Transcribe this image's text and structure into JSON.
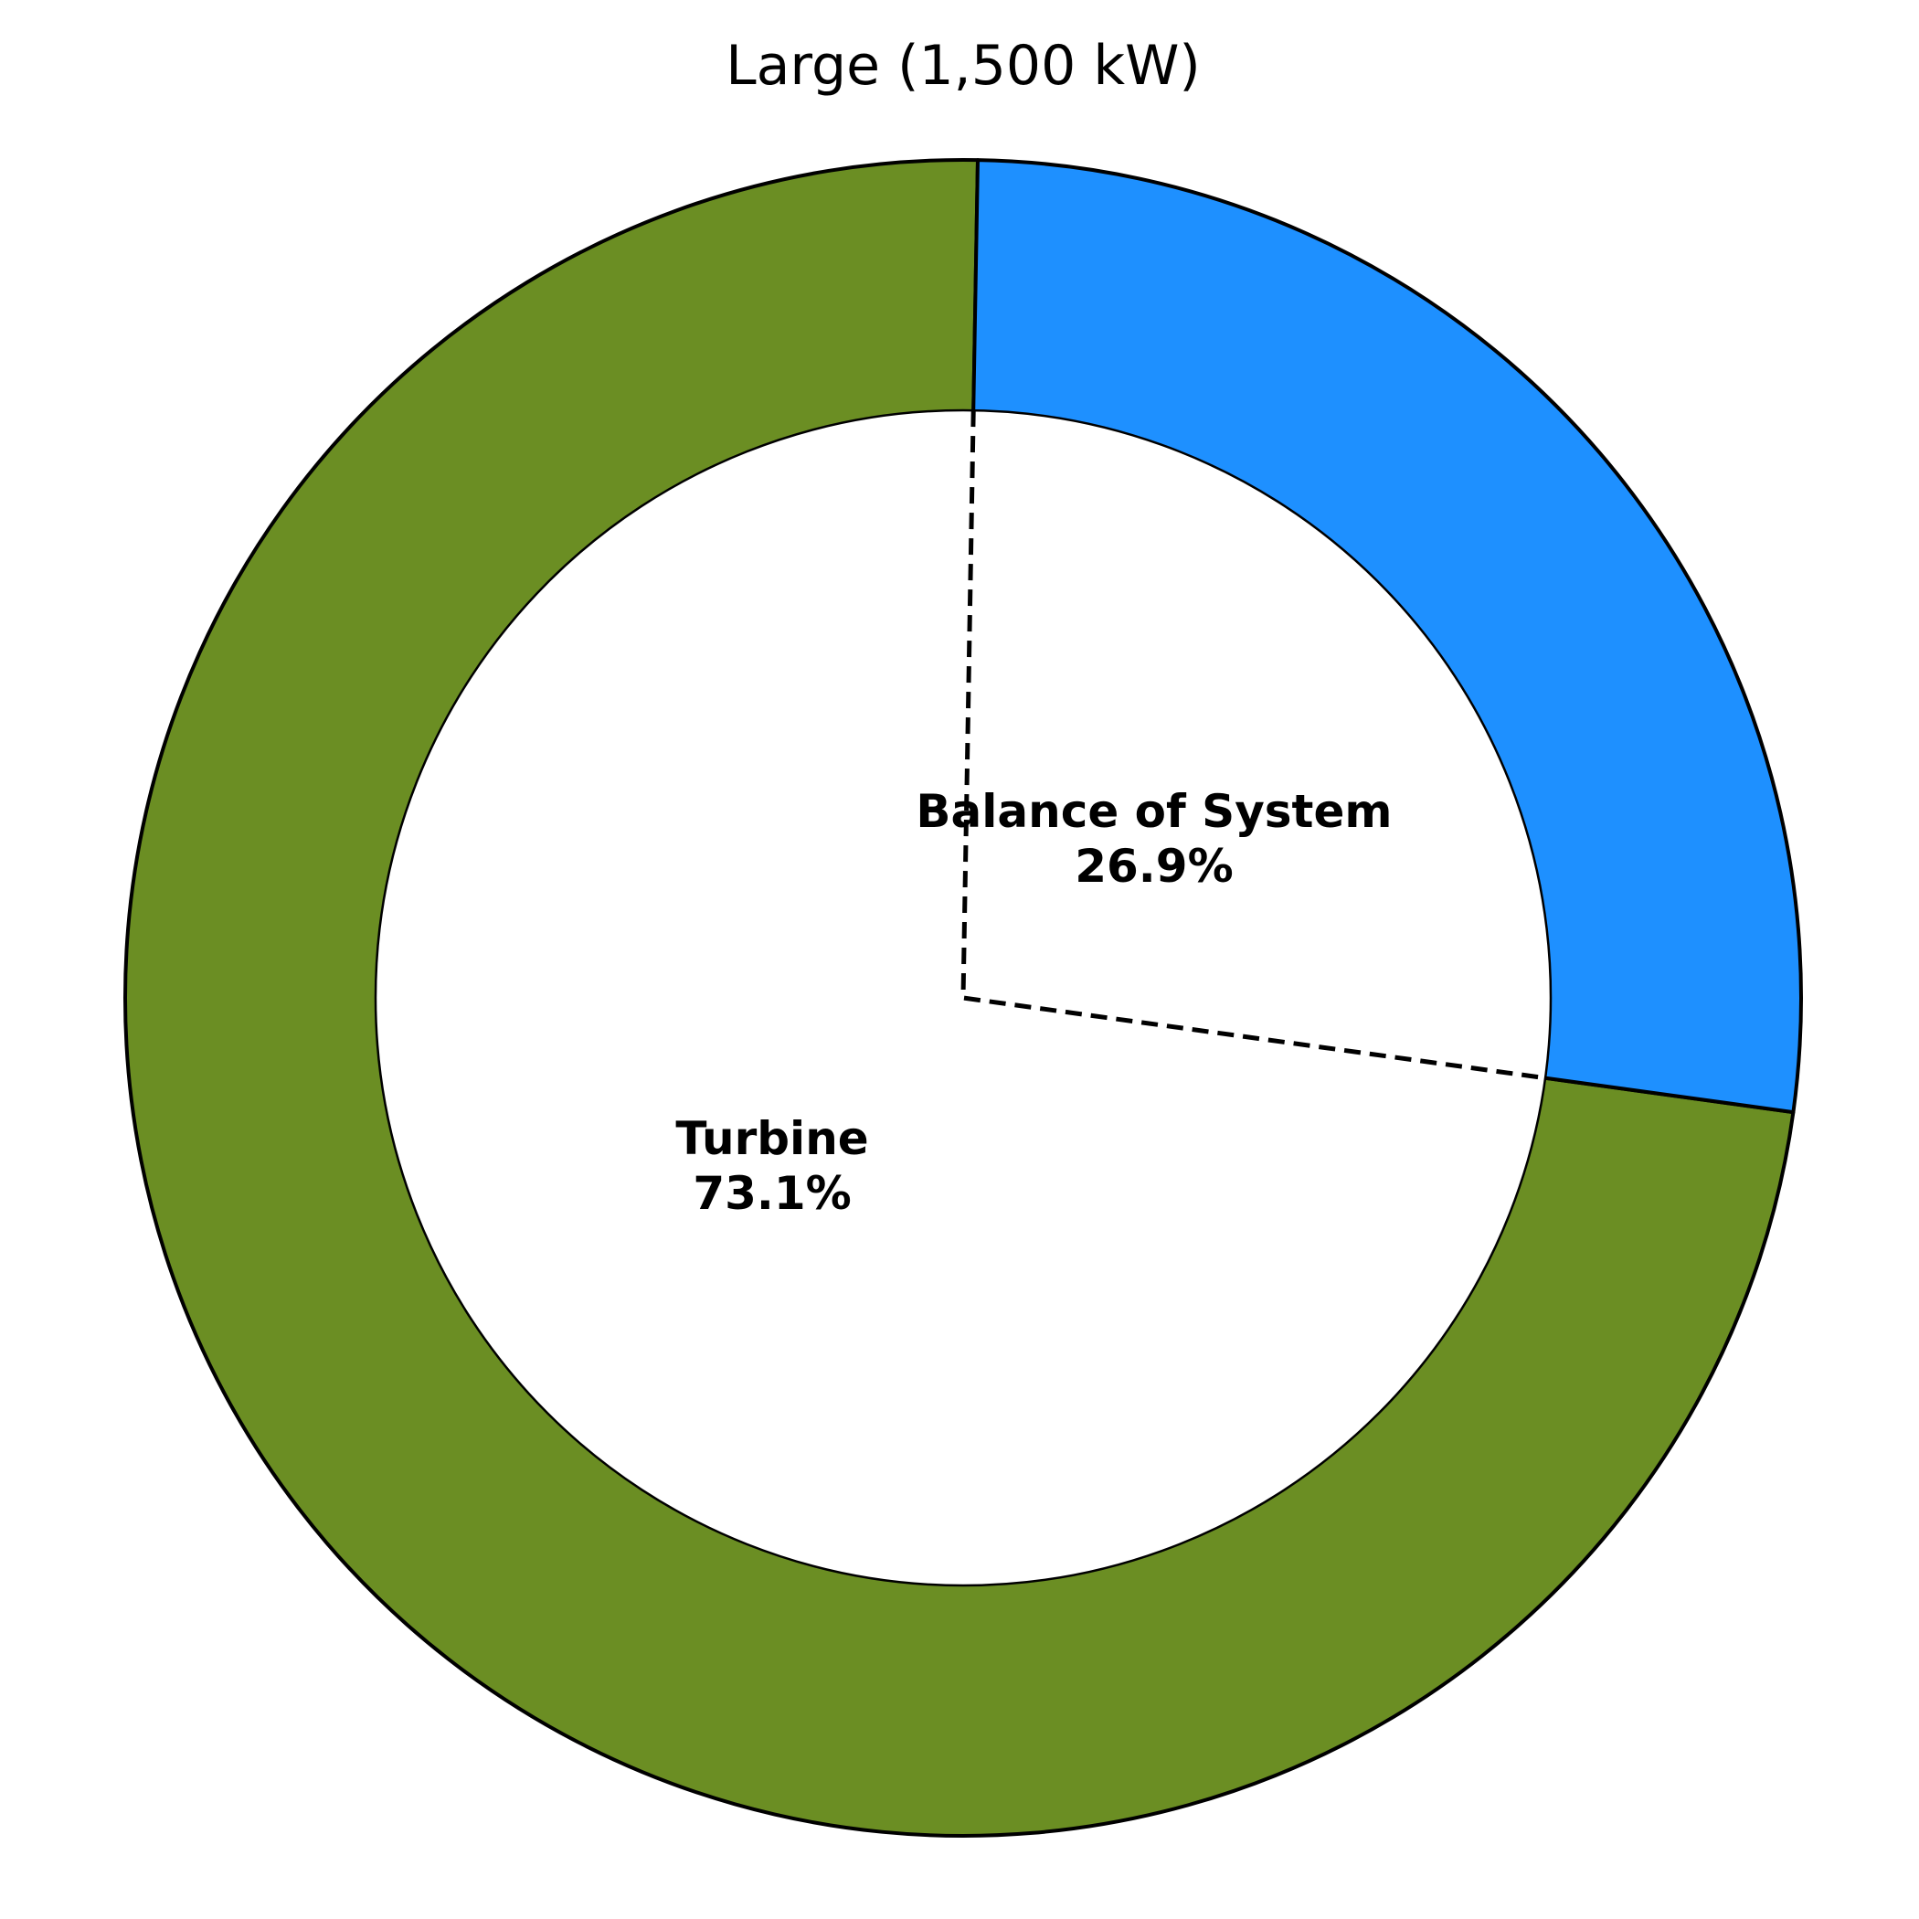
{
  "chart_data": {
    "type": "pie",
    "variant": "donut",
    "title": "Large (1,500 kW)",
    "slices": [
      {
        "name": "Turbine",
        "value": 73.1,
        "label": "73.1%",
        "color": "#6B8E23"
      },
      {
        "name": "Balance of System",
        "value": 26.9,
        "label": "26.9%",
        "color": "#1E90FF"
      }
    ],
    "legend": "none"
  }
}
